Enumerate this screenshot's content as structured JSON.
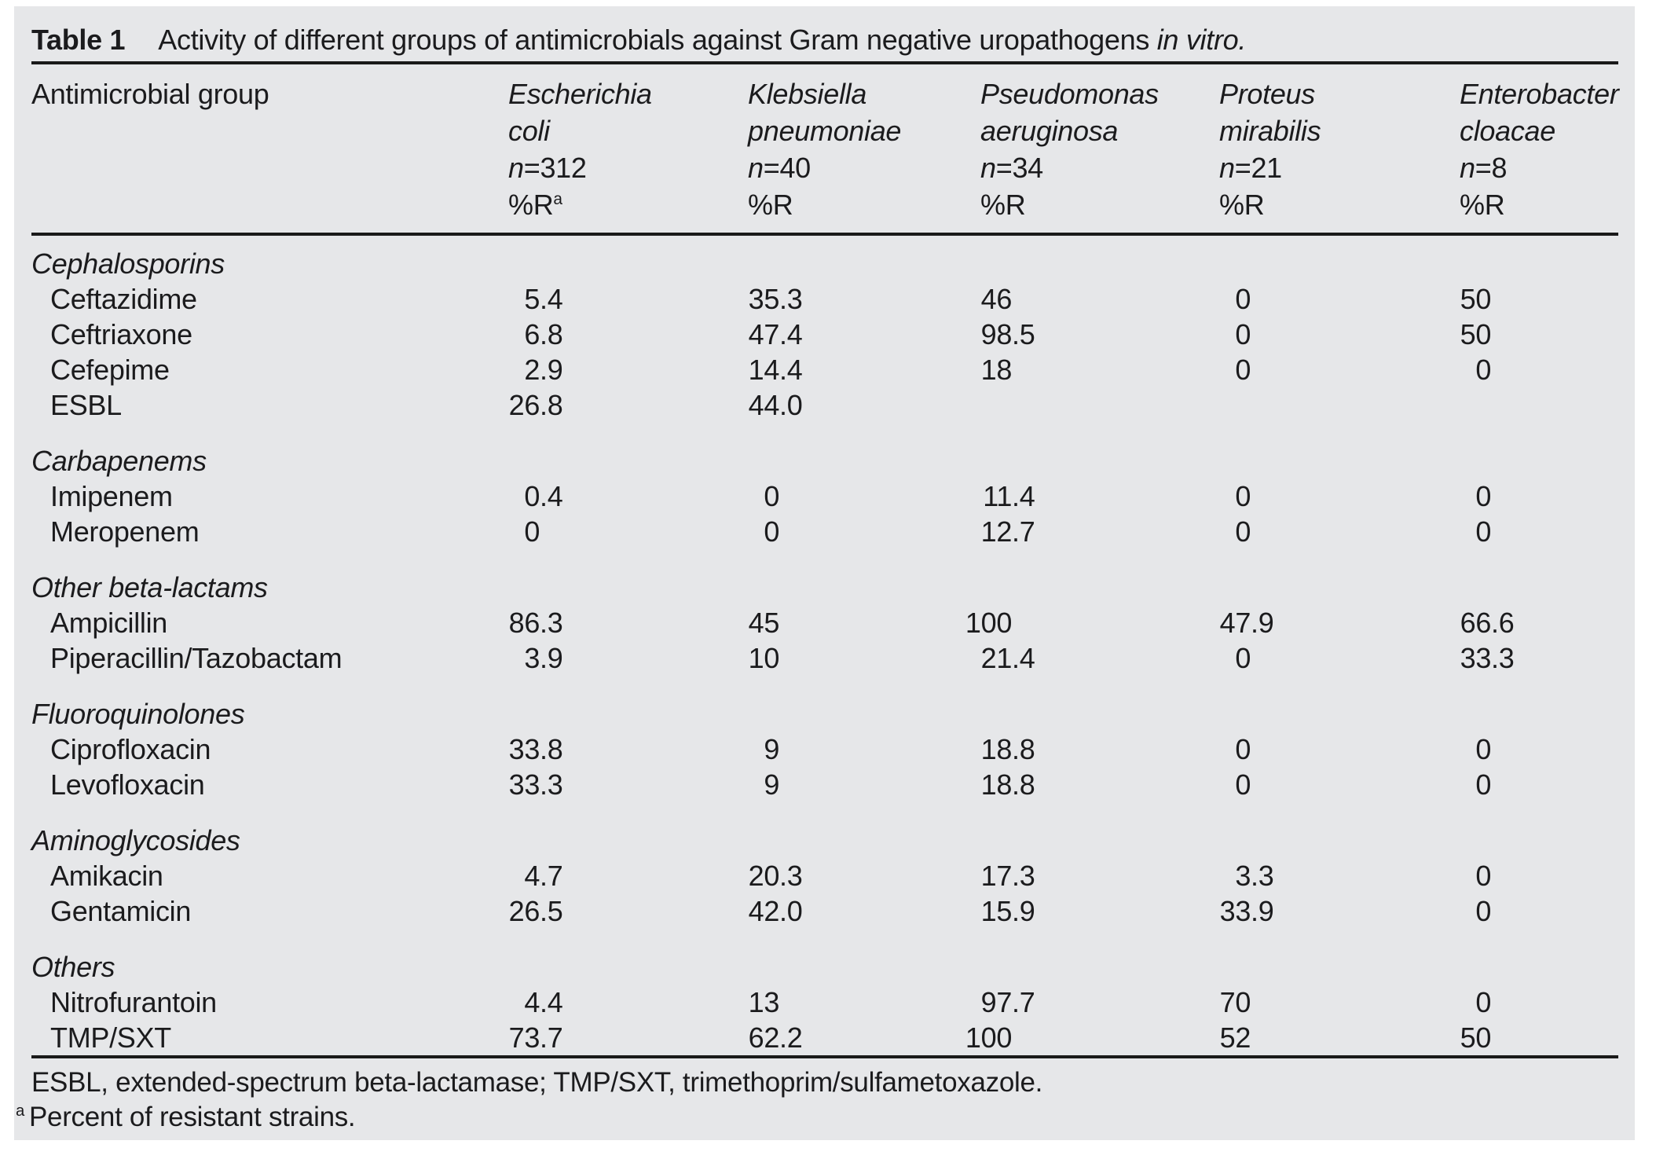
{
  "title": {
    "label": "Table 1",
    "text": "Activity of different groups of antimicrobials against Gram negative uropathogens",
    "italic": "in vitro."
  },
  "header": {
    "group_column": "Antimicrobial group",
    "organisms": [
      {
        "genus": "Escherichia",
        "species": "coli",
        "n_prefix": "n",
        "n_value": "=312",
        "r_label": "%R",
        "r_sup": "a"
      },
      {
        "genus": "Klebsiella",
        "species": "pneumoniae",
        "n_prefix": "n",
        "n_value": "=40",
        "r_label": "%R",
        "r_sup": ""
      },
      {
        "genus": "Pseudomonas",
        "species": "aeruginosa",
        "n_prefix": "n",
        "n_value": "=34",
        "r_label": "%R",
        "r_sup": ""
      },
      {
        "genus": "Proteus",
        "species": "mirabilis",
        "n_prefix": "n",
        "n_value": "=21",
        "r_label": "%R",
        "r_sup": ""
      },
      {
        "genus": "Enterobacter",
        "species": "cloacae",
        "n_prefix": "n",
        "n_value": "=8",
        "r_label": "%R",
        "r_sup": ""
      }
    ]
  },
  "sections": [
    {
      "heading": "Cephalosporins",
      "rows": [
        {
          "name": "Ceftazidime",
          "values": [
            "5.4",
            "35.3",
            "46",
            "0",
            "50"
          ]
        },
        {
          "name": "Ceftriaxone",
          "values": [
            "6.8",
            "47.4",
            "98.5",
            "0",
            "50"
          ]
        },
        {
          "name": "Cefepime",
          "values": [
            "2.9",
            "14.4",
            "18",
            "0",
            "0"
          ]
        },
        {
          "name": "ESBL",
          "values": [
            "26.8",
            "44.0",
            "",
            "",
            ""
          ]
        }
      ]
    },
    {
      "heading": "Carbapenems",
      "rows": [
        {
          "name": "Imipenem",
          "values": [
            "0.4",
            "0",
            "11.4",
            "0",
            "0"
          ]
        },
        {
          "name": "Meropenem",
          "values": [
            "0",
            "0",
            "12.7",
            "0",
            "0"
          ]
        }
      ]
    },
    {
      "heading": "Other beta-lactams",
      "rows": [
        {
          "name": "Ampicillin",
          "values": [
            "86.3",
            "45",
            "100",
            "47.9",
            "66.6"
          ]
        },
        {
          "name": "Piperacillin/Tazobactam",
          "values": [
            "3.9",
            "10",
            "21.4",
            "0",
            "33.3"
          ]
        }
      ]
    },
    {
      "heading": "Fluoroquinolones",
      "rows": [
        {
          "name": "Ciprofloxacin",
          "values": [
            "33.8",
            "9",
            "18.8",
            "0",
            "0"
          ]
        },
        {
          "name": "Levofloxacin",
          "values": [
            "33.3",
            "9",
            "18.8",
            "0",
            "0"
          ]
        }
      ]
    },
    {
      "heading": "Aminoglycosides",
      "rows": [
        {
          "name": "Amikacin",
          "values": [
            "4.7",
            "20.3",
            "17.3",
            "3.3",
            "0"
          ]
        },
        {
          "name": "Gentamicin",
          "values": [
            "26.5",
            "42.0",
            "15.9",
            "33.9",
            "0"
          ]
        }
      ]
    },
    {
      "heading": "Others",
      "rows": [
        {
          "name": "Nitrofurantoin",
          "values": [
            "4.4",
            "13",
            "97.7",
            "70",
            "0"
          ]
        },
        {
          "name": "TMP/SXT",
          "values": [
            "73.7",
            "62.2",
            "100",
            "52",
            "50"
          ]
        }
      ]
    }
  ],
  "footnotes": {
    "abbreviations": "ESBL, extended-spectrum beta-lactamase; TMP/SXT, trimethoprim/sulfametoxazole.",
    "marker": "a",
    "marker_text": "Percent of resistant strains."
  }
}
